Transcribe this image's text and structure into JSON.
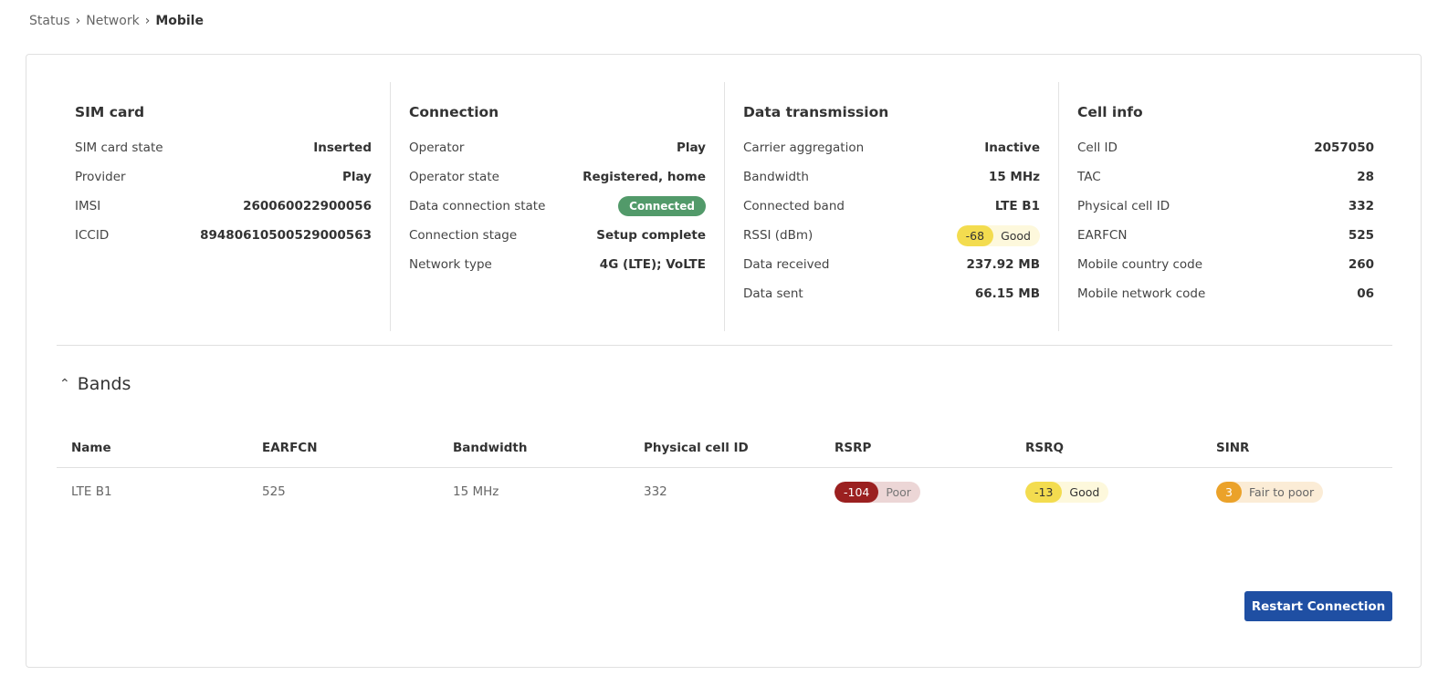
{
  "breadcrumb": [
    "Status",
    "Network",
    "Mobile"
  ],
  "sim": {
    "title": "SIM card",
    "rows": [
      [
        "SIM card state",
        "Inserted"
      ],
      [
        "Provider",
        "Play"
      ],
      [
        "IMSI",
        "260060022900056"
      ],
      [
        "ICCID",
        "89480610500529000563"
      ]
    ]
  },
  "connection": {
    "title": "Connection",
    "rows": [
      [
        "Operator",
        "Play"
      ],
      [
        "Operator state",
        "Registered, home"
      ],
      [
        "Data connection state",
        "Connected"
      ],
      [
        "Connection stage",
        "Setup complete"
      ],
      [
        "Network type",
        "4G (LTE); VoLTE"
      ]
    ]
  },
  "data": {
    "title": "Data transmission",
    "rows": [
      [
        "Carrier aggregation",
        "Inactive"
      ],
      [
        "Bandwidth",
        "15 MHz"
      ],
      [
        "Connected band",
        "LTE B1"
      ],
      [
        "RSSI (dBm)",
        "-68",
        "Good"
      ],
      [
        "Data received",
        "237.92 MB"
      ],
      [
        "Data sent",
        "66.15 MB"
      ]
    ]
  },
  "cell": {
    "title": "Cell info",
    "rows": [
      [
        "Cell ID",
        "2057050"
      ],
      [
        "TAC",
        "28"
      ],
      [
        "Physical cell ID",
        "332"
      ],
      [
        "EARFCN",
        "525"
      ],
      [
        "Mobile country code",
        "260"
      ],
      [
        "Mobile network code",
        "06"
      ]
    ]
  },
  "bands": {
    "title": "Bands",
    "headers": [
      "Name",
      "EARFCN",
      "Bandwidth",
      "Physical cell ID",
      "RSRP",
      "RSRQ",
      "SINR"
    ],
    "row": {
      "name": "LTE B1",
      "earfcn": "525",
      "bandwidth": "15 MHz",
      "pci": "332",
      "rsrp": [
        "-104",
        "Poor"
      ],
      "rsrq": [
        "-13",
        "Good"
      ],
      "sinr": [
        "3",
        "Fair to poor"
      ]
    }
  },
  "colors": {
    "good": "#f3dc4f",
    "good_bg": "#fdf8dc",
    "poor": "#9b2020",
    "poor_bg": "#ecd6d6",
    "fair": "#eba22a",
    "fair_bg": "#fbecd6",
    "connected": "#529a6a",
    "button": "#1f4fa3"
  },
  "restart_label": "Restart Connection"
}
